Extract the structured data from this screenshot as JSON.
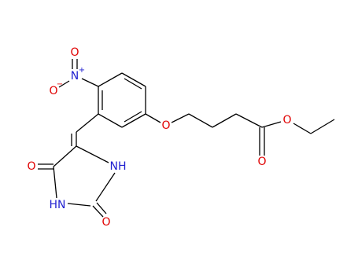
{
  "atoms": [
    {
      "label": "O",
      "charge": "−"
    },
    {
      "label": "N",
      "charge": "+"
    },
    {
      "label": "O"
    },
    {
      "label": "O"
    },
    {
      "label": "O"
    },
    {
      "label": "O"
    },
    {
      "label": "NH"
    },
    {
      "label": "HN"
    },
    {
      "label": "O"
    },
    {
      "label": "O"
    }
  ]
}
